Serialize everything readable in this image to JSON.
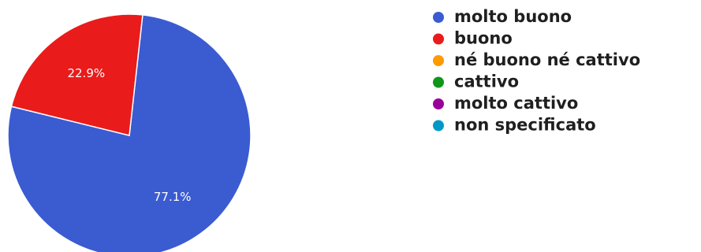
{
  "chart_data": {
    "type": "pie",
    "title": "",
    "start_angle_deg": 6.3,
    "direction": "clockwise",
    "legend_position": "right",
    "categories": [
      "molto buono",
      "buono",
      "né buono né cattivo",
      "cattivo",
      "molto cattivo",
      "non specificato"
    ],
    "values": [
      77.1,
      22.9,
      0,
      0,
      0,
      0
    ],
    "labels": [
      "77.1%",
      "22.9%",
      "",
      "",
      "",
      ""
    ],
    "colors": [
      "#3b5bd1",
      "#ea1b1b",
      "#ff9900",
      "#109618",
      "#990099",
      "#0099c6"
    ]
  }
}
